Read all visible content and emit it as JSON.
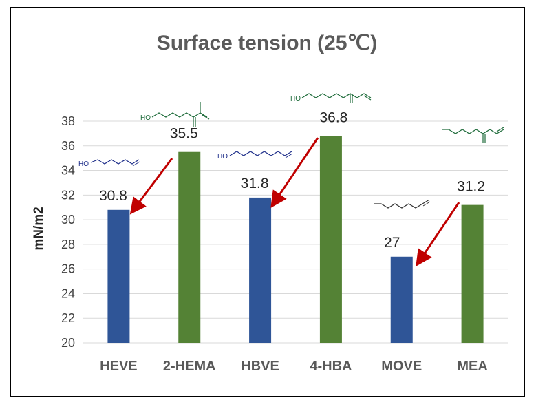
{
  "chart_data": {
    "type": "bar",
    "title": "Surface tension (25℃)",
    "ylabel": "mN/m2",
    "xlabel": "",
    "ylim": [
      20,
      38
    ],
    "yticks": [
      20,
      22,
      24,
      26,
      28,
      30,
      32,
      34,
      36,
      38
    ],
    "grid": "horizontal",
    "categories": [
      "HEVE",
      "2-HEMA",
      "HBVE",
      "4-HBA",
      "MOVE",
      "MEA"
    ],
    "values": [
      30.8,
      35.5,
      31.8,
      36.8,
      27,
      31.2
    ],
    "data_labels": [
      "30.8",
      "35.5",
      "31.8",
      "36.8",
      "27",
      "31.2"
    ],
    "bar_colors": [
      "#2f5597",
      "#548235",
      "#2f5597",
      "#548235",
      "#2f5597",
      "#548235"
    ],
    "arrow_color": "#c00000",
    "annotations": [
      {
        "type": "arrow",
        "from": "2-HEMA",
        "to": "HEVE"
      },
      {
        "type": "arrow",
        "from": "4-HBA",
        "to": "HBVE"
      },
      {
        "type": "arrow",
        "from": "MEA",
        "to": "MOVE"
      }
    ],
    "structure_labels": {
      "HEVE": "HO",
      "2-HEMA": "HO",
      "HBVE": "HO",
      "4-HBA": "HO",
      "MOVE": "",
      "MEA": ""
    }
  }
}
